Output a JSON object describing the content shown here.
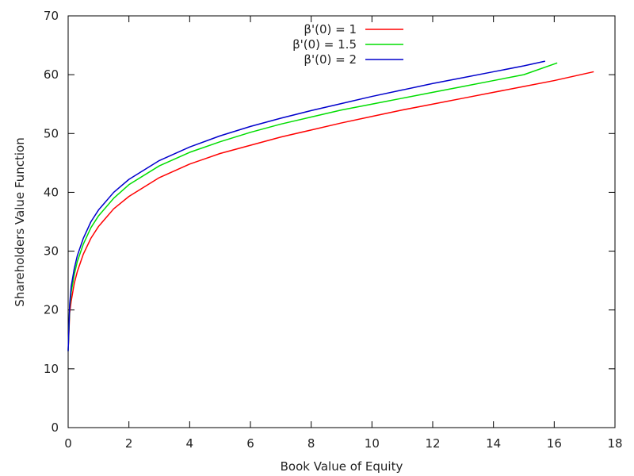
{
  "chart_data": {
    "type": "line",
    "xlabel": "Book Value of Equity",
    "ylabel": "Shareholders Value Function",
    "xlim": [
      0,
      18
    ],
    "ylim": [
      0,
      70
    ],
    "xticks": [
      "0",
      "2",
      "4",
      "6",
      "8",
      "10",
      "12",
      "14",
      "16",
      "18"
    ],
    "yticks": [
      "0",
      "10",
      "20",
      "30",
      "40",
      "50",
      "60",
      "70"
    ],
    "grid": false,
    "legend_position": "top-center",
    "series": [
      {
        "name": "β'(0) = 1",
        "color": "#ff0000",
        "points": [
          [
            0,
            13
          ],
          [
            0.05,
            19.5
          ],
          [
            0.1,
            21.5
          ],
          [
            0.2,
            24.5
          ],
          [
            0.3,
            26.5
          ],
          [
            0.5,
            29.5
          ],
          [
            0.75,
            32.2
          ],
          [
            1,
            34.2
          ],
          [
            1.5,
            37.2
          ],
          [
            2,
            39.3
          ],
          [
            3,
            42.5
          ],
          [
            4,
            44.8
          ],
          [
            5,
            46.6
          ],
          [
            6,
            48.0
          ],
          [
            7,
            49.4
          ],
          [
            8,
            50.6
          ],
          [
            9,
            51.8
          ],
          [
            10,
            52.9
          ],
          [
            11,
            54.0
          ],
          [
            12,
            55.0
          ],
          [
            13,
            56.0
          ],
          [
            14,
            57.0
          ],
          [
            15,
            58.0
          ],
          [
            16,
            59.0
          ],
          [
            17.3,
            60.5
          ]
        ]
      },
      {
        "name": "β'(0) = 1.5",
        "color": "#00dd00",
        "points": [
          [
            0,
            13
          ],
          [
            0.05,
            20.5
          ],
          [
            0.1,
            23
          ],
          [
            0.2,
            26
          ],
          [
            0.3,
            28.2
          ],
          [
            0.5,
            31.2
          ],
          [
            0.75,
            34.0
          ],
          [
            1,
            36.0
          ],
          [
            1.5,
            39.0
          ],
          [
            2,
            41.3
          ],
          [
            3,
            44.5
          ],
          [
            4,
            46.8
          ],
          [
            5,
            48.6
          ],
          [
            6,
            50.2
          ],
          [
            7,
            51.6
          ],
          [
            8,
            52.8
          ],
          [
            9,
            54.0
          ],
          [
            10,
            55.0
          ],
          [
            11,
            56.0
          ],
          [
            12,
            57.0
          ],
          [
            13,
            58.0
          ],
          [
            14,
            59.0
          ],
          [
            15,
            60.0
          ],
          [
            16.1,
            62.0
          ]
        ]
      },
      {
        "name": "β'(0) = 2",
        "color": "#0000cc",
        "points": [
          [
            0,
            13
          ],
          [
            0.05,
            21
          ],
          [
            0.1,
            24
          ],
          [
            0.2,
            27
          ],
          [
            0.3,
            29.2
          ],
          [
            0.5,
            32.2
          ],
          [
            0.75,
            35.0
          ],
          [
            1,
            37.0
          ],
          [
            1.5,
            40.0
          ],
          [
            2,
            42.2
          ],
          [
            3,
            45.4
          ],
          [
            4,
            47.7
          ],
          [
            5,
            49.6
          ],
          [
            6,
            51.2
          ],
          [
            7,
            52.6
          ],
          [
            8,
            53.9
          ],
          [
            9,
            55.1
          ],
          [
            10,
            56.3
          ],
          [
            11,
            57.4
          ],
          [
            12,
            58.5
          ],
          [
            13,
            59.5
          ],
          [
            14,
            60.5
          ],
          [
            15,
            61.5
          ],
          [
            15.7,
            62.3
          ]
        ]
      }
    ]
  }
}
